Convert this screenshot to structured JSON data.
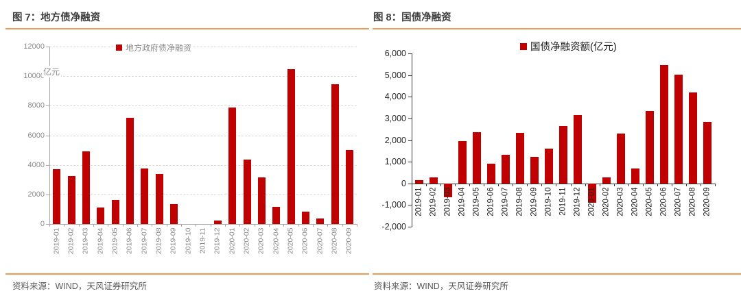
{
  "colors": {
    "bar_red": "#c00000",
    "accent_orange": "#f09a58",
    "grid_gray": "#d9d9d9"
  },
  "footer": {
    "left_source": "资料来源：WIND，天风证券研究所",
    "right_source": "资料来源：WIND，天风证券研究所"
  },
  "chart_data": [
    {
      "type": "bar",
      "title": "图 7：地方债净融资",
      "legend_label": "地方政府债净融资",
      "unit_label": "亿元",
      "legend_position": "top",
      "grid": true,
      "ylim": [
        0,
        12000
      ],
      "ytick_step": 2000,
      "ytick_format": "plain",
      "categories": [
        "2019-01",
        "2019-02",
        "2019-03",
        "2019-04",
        "2019-05",
        "2019-06",
        "2019-07",
        "2019-08",
        "2019-09",
        "2019-10",
        "2019-11",
        "2019-12",
        "2020-01",
        "2020-02",
        "2020-03",
        "2020-04",
        "2020-05",
        "2020-06",
        "2020-07",
        "2020-08",
        "2020-09"
      ],
      "values": [
        3700,
        3250,
        4900,
        1100,
        1630,
        7200,
        3750,
        3400,
        1360,
        0,
        0,
        230,
        7860,
        4370,
        3160,
        1170,
        10480,
        830,
        380,
        9460,
        5000
      ]
    },
    {
      "type": "bar",
      "title": "图 8：国债净融资",
      "legend_label": "国债净融资额(亿元)",
      "unit_label": "",
      "legend_position": "top",
      "grid": false,
      "ylim": [
        -2000,
        6000
      ],
      "ytick_step": 1000,
      "ytick_format": "comma",
      "categories": [
        "2019-01",
        "2019-02",
        "2019-03",
        "2019-04",
        "2019-05",
        "2019-06",
        "2019-07",
        "2019-08",
        "2019-09",
        "2019-10",
        "2019-11",
        "2019-12",
        "2020-01",
        "2020-02",
        "2020-03",
        "2020-04",
        "2020-05",
        "2020-06",
        "2020-07",
        "2020-08",
        "2020-09"
      ],
      "values": [
        150,
        280,
        -650,
        1950,
        2370,
        900,
        1320,
        2320,
        1210,
        1590,
        2660,
        3150,
        -900,
        270,
        2300,
        700,
        3350,
        5470,
        5030,
        4190,
        2850
      ]
    }
  ]
}
